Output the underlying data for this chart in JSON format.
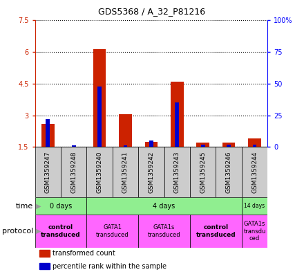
{
  "title": "GDS5368 / A_32_P81216",
  "samples": [
    "GSM1359247",
    "GSM1359248",
    "GSM1359240",
    "GSM1359241",
    "GSM1359242",
    "GSM1359243",
    "GSM1359245",
    "GSM1359246",
    "GSM1359244"
  ],
  "red_values": [
    2.6,
    1.5,
    6.15,
    3.05,
    1.75,
    4.6,
    1.7,
    1.7,
    1.9
  ],
  "blue_values": [
    22,
    1,
    48,
    1,
    5,
    35,
    2,
    2,
    2
  ],
  "ylim_left": [
    1.5,
    7.5
  ],
  "ylim_right": [
    0,
    100
  ],
  "yticks_left": [
    1.5,
    3.0,
    4.5,
    6.0,
    7.5
  ],
  "ytick_labels_left": [
    "1.5",
    "3",
    "4.5",
    "6",
    "7.5"
  ],
  "yticks_right": [
    0,
    25,
    50,
    75,
    100
  ],
  "ytick_labels_right": [
    "0",
    "25",
    "50",
    "75",
    "100%"
  ],
  "red_color": "#CC2200",
  "blue_color": "#0000CC",
  "label_area_color": "#CCCCCC",
  "time_data": [
    {
      "label": "0 days",
      "start": 0,
      "end": 2
    },
    {
      "label": "4 days",
      "start": 2,
      "end": 8
    },
    {
      "label": "14 days",
      "start": 8,
      "end": 9
    }
  ],
  "protocol_data": [
    {
      "label": "control\ntransduced",
      "start": 0,
      "end": 2,
      "bold": true
    },
    {
      "label": "GATA1\ntransduced",
      "start": 2,
      "end": 4,
      "bold": false
    },
    {
      "label": "GATA1s\ntransduced",
      "start": 4,
      "end": 6,
      "bold": false
    },
    {
      "label": "control\ntransduced",
      "start": 6,
      "end": 8,
      "bold": true
    },
    {
      "label": "GATA1s\ntransdu\nced",
      "start": 8,
      "end": 9,
      "bold": false
    }
  ],
  "time_color": "#90EE90",
  "protocol_color": "#FF66FF",
  "red_bar_width": 0.5,
  "blue_bar_width": 0.15
}
